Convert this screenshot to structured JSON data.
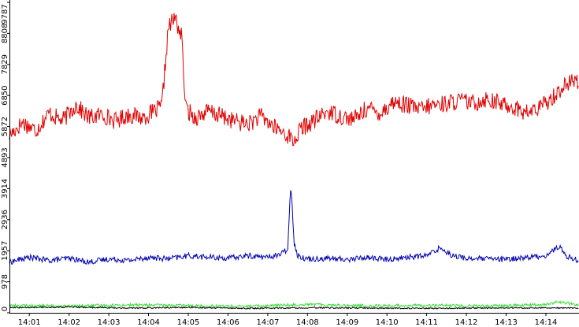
{
  "chart_data": {
    "type": "line",
    "x_ticks": [
      "14:01",
      "14:02",
      "14:03",
      "14:04",
      "14:05",
      "14:06",
      "14:07",
      "14:08",
      "14:09",
      "14:10",
      "14:11",
      "14:12",
      "14:13",
      "14:14"
    ],
    "xlim": [
      "14:00:30",
      "14:14:50"
    ],
    "y_ticks": [
      "0",
      "978",
      "1957",
      "2936",
      "3914",
      "4893",
      "5872",
      "6850",
      "7829",
      "8808",
      "9787"
    ],
    "ylim": [
      0,
      9787
    ],
    "grid": false,
    "legend": "none",
    "colors": {
      "background": "#ffffff",
      "axis": "#000000"
    },
    "series": [
      {
        "color": "#e00000",
        "x": [
          "14:00:30",
          "14:00:50",
          "14:01:10",
          "14:01:30",
          "14:01:50",
          "14:02:10",
          "14:02:30",
          "14:02:50",
          "14:03:10",
          "14:03:30",
          "14:03:50",
          "14:04:10",
          "14:04:20",
          "14:04:30",
          "14:04:40",
          "14:04:50",
          "14:04:56",
          "14:05:10",
          "14:05:30",
          "14:05:50",
          "14:06:10",
          "14:06:30",
          "14:06:50",
          "14:07:10",
          "14:07:30",
          "14:07:40",
          "14:07:50",
          "14:08:10",
          "14:08:30",
          "14:08:50",
          "14:09:10",
          "14:09:30",
          "14:09:50",
          "14:10:10",
          "14:10:30",
          "14:10:50",
          "14:11:10",
          "14:11:30",
          "14:11:50",
          "14:12:10",
          "14:12:30",
          "14:12:50",
          "14:13:10",
          "14:13:30",
          "14:13:50",
          "14:14:10",
          "14:14:30",
          "14:14:50"
        ],
        "values": [
          5600,
          6000,
          5750,
          6300,
          6050,
          6550,
          6150,
          6250,
          6050,
          6250,
          6150,
          6350,
          6500,
          9000,
          9300,
          8700,
          6450,
          6150,
          6350,
          6200,
          6050,
          5950,
          6200,
          5850,
          5600,
          5400,
          5800,
          6050,
          6350,
          6200,
          6100,
          6450,
          6300,
          6650,
          6550,
          6400,
          6550,
          6600,
          6700,
          6600,
          6750,
          6600,
          6500,
          6300,
          6450,
          6800,
          7200,
          7350
        ]
      },
      {
        "color": "#0000b0",
        "x": [
          "14:00:30",
          "14:01:00",
          "14:01:30",
          "14:02:00",
          "14:02:30",
          "14:03:00",
          "14:03:30",
          "14:04:00",
          "14:04:30",
          "14:05:00",
          "14:05:30",
          "14:06:00",
          "14:06:30",
          "14:07:00",
          "14:07:20",
          "14:07:30",
          "14:07:35",
          "14:07:40",
          "14:07:45",
          "14:08:00",
          "14:08:30",
          "14:09:00",
          "14:09:30",
          "14:10:00",
          "14:10:30",
          "14:11:00",
          "14:11:20",
          "14:11:40",
          "14:12:00",
          "14:12:30",
          "14:13:00",
          "14:13:30",
          "14:14:00",
          "14:14:20",
          "14:14:30",
          "14:14:50"
        ],
        "values": [
          1600,
          1750,
          1650,
          1720,
          1600,
          1700,
          1650,
          1750,
          1700,
          1800,
          1750,
          1720,
          1800,
          1750,
          1850,
          2000,
          4100,
          2200,
          1800,
          1700,
          1720,
          1680,
          1750,
          1680,
          1750,
          1800,
          2050,
          1800,
          1720,
          1700,
          1680,
          1750,
          1800,
          2100,
          1800,
          1650
        ]
      },
      {
        "color": "#33dd33",
        "x": [
          "14:00:30",
          "14:02:00",
          "14:03:30",
          "14:05:00",
          "14:06:30",
          "14:08:00",
          "14:09:30",
          "14:11:00",
          "14:12:30",
          "14:14:00",
          "14:14:20",
          "14:14:50"
        ],
        "values": [
          230,
          210,
          250,
          230,
          200,
          270,
          220,
          240,
          210,
          260,
          350,
          240
        ]
      },
      {
        "color": "#000000",
        "x": [
          "14:00:30",
          "14:02:00",
          "14:03:30",
          "14:05:00",
          "14:06:30",
          "14:08:00",
          "14:09:30",
          "14:11:00",
          "14:12:30",
          "14:14:00",
          "14:14:50"
        ],
        "values": [
          160,
          180,
          150,
          170,
          140,
          160,
          150,
          140,
          150,
          160,
          150
        ]
      }
    ]
  }
}
